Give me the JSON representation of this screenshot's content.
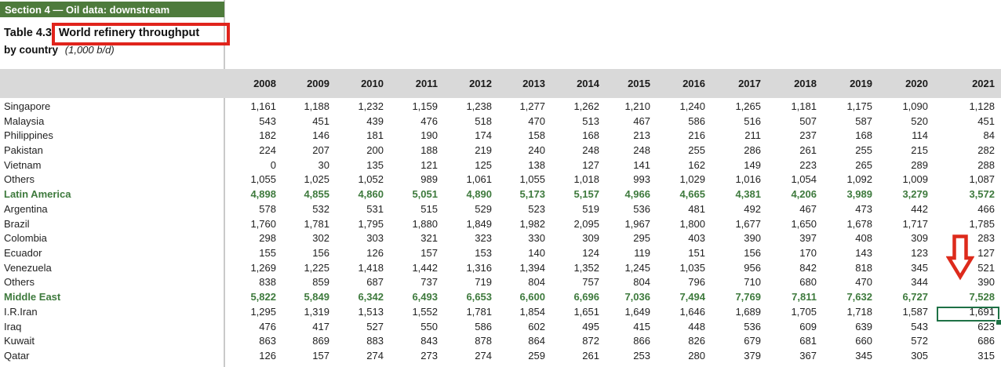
{
  "section_header": "Section 4 — Oil data: downstream",
  "table": {
    "title_prefix": "Table 4.3:",
    "title_highlight": "World refinery throughput",
    "subtitle": "by country",
    "unit": "(1,000 b/d)"
  },
  "years": [
    "2008",
    "2009",
    "2010",
    "2011",
    "2012",
    "2013",
    "2014",
    "2015",
    "2016",
    "2017",
    "2018",
    "2019",
    "2020",
    "2021"
  ],
  "rows": [
    {
      "label": "Singapore",
      "type": "country",
      "values": [
        "1,161",
        "1,188",
        "1,232",
        "1,159",
        "1,238",
        "1,277",
        "1,262",
        "1,210",
        "1,240",
        "1,265",
        "1,181",
        "1,175",
        "1,090",
        "1,128"
      ]
    },
    {
      "label": "Malaysia",
      "type": "country",
      "values": [
        "543",
        "451",
        "439",
        "476",
        "518",
        "470",
        "513",
        "467",
        "586",
        "516",
        "507",
        "587",
        "520",
        "451"
      ]
    },
    {
      "label": "Philippines",
      "type": "country",
      "values": [
        "182",
        "146",
        "181",
        "190",
        "174",
        "158",
        "168",
        "213",
        "216",
        "211",
        "237",
        "168",
        "114",
        "84"
      ]
    },
    {
      "label": "Pakistan",
      "type": "country",
      "values": [
        "224",
        "207",
        "200",
        "188",
        "219",
        "240",
        "248",
        "248",
        "255",
        "286",
        "261",
        "255",
        "215",
        "282"
      ]
    },
    {
      "label": "Vietnam",
      "type": "country",
      "values": [
        "0",
        "30",
        "135",
        "121",
        "125",
        "138",
        "127",
        "141",
        "162",
        "149",
        "223",
        "265",
        "289",
        "288"
      ]
    },
    {
      "label": "Others",
      "type": "country",
      "values": [
        "1,055",
        "1,025",
        "1,052",
        "989",
        "1,061",
        "1,055",
        "1,018",
        "993",
        "1,029",
        "1,016",
        "1,054",
        "1,092",
        "1,009",
        "1,087"
      ]
    },
    {
      "label": "Latin America",
      "type": "group",
      "values": [
        "4,898",
        "4,855",
        "4,860",
        "5,051",
        "4,890",
        "5,173",
        "5,157",
        "4,966",
        "4,665",
        "4,381",
        "4,206",
        "3,989",
        "3,279",
        "3,572"
      ]
    },
    {
      "label": "Argentina",
      "type": "country",
      "values": [
        "578",
        "532",
        "531",
        "515",
        "529",
        "523",
        "519",
        "536",
        "481",
        "492",
        "467",
        "473",
        "442",
        "466"
      ]
    },
    {
      "label": "Brazil",
      "type": "country",
      "values": [
        "1,760",
        "1,781",
        "1,795",
        "1,880",
        "1,849",
        "1,982",
        "2,095",
        "1,967",
        "1,800",
        "1,677",
        "1,650",
        "1,678",
        "1,717",
        "1,785"
      ]
    },
    {
      "label": "Colombia",
      "type": "country",
      "values": [
        "298",
        "302",
        "303",
        "321",
        "323",
        "330",
        "309",
        "295",
        "403",
        "390",
        "397",
        "408",
        "309",
        "283"
      ]
    },
    {
      "label": "Ecuador",
      "type": "country",
      "values": [
        "155",
        "156",
        "126",
        "157",
        "153",
        "140",
        "124",
        "119",
        "151",
        "156",
        "170",
        "143",
        "123",
        "127"
      ]
    },
    {
      "label": "Venezuela",
      "type": "country",
      "values": [
        "1,269",
        "1,225",
        "1,418",
        "1,442",
        "1,316",
        "1,394",
        "1,352",
        "1,245",
        "1,035",
        "956",
        "842",
        "818",
        "345",
        "521"
      ]
    },
    {
      "label": "Others",
      "type": "country",
      "values": [
        "838",
        "859",
        "687",
        "737",
        "719",
        "804",
        "757",
        "804",
        "796",
        "710",
        "680",
        "470",
        "344",
        "390"
      ]
    },
    {
      "label": "Middle East",
      "type": "group",
      "values": [
        "5,822",
        "5,849",
        "6,342",
        "6,493",
        "6,653",
        "6,600",
        "6,696",
        "7,036",
        "7,494",
        "7,769",
        "7,811",
        "7,632",
        "6,727",
        "7,528"
      ]
    },
    {
      "label": "I.R.Iran",
      "type": "country",
      "values": [
        "1,295",
        "1,319",
        "1,513",
        "1,552",
        "1,781",
        "1,854",
        "1,651",
        "1,649",
        "1,646",
        "1,689",
        "1,705",
        "1,718",
        "1,587",
        "1,691"
      ]
    },
    {
      "label": "Iraq",
      "type": "country",
      "values": [
        "476",
        "417",
        "527",
        "550",
        "586",
        "602",
        "495",
        "415",
        "448",
        "536",
        "609",
        "639",
        "543",
        "623"
      ]
    },
    {
      "label": "Kuwait",
      "type": "country",
      "values": [
        "863",
        "869",
        "883",
        "843",
        "878",
        "864",
        "872",
        "866",
        "826",
        "679",
        "681",
        "660",
        "572",
        "686"
      ]
    },
    {
      "label": "Qatar",
      "type": "country",
      "values": [
        "126",
        "157",
        "274",
        "273",
        "274",
        "259",
        "261",
        "253",
        "280",
        "379",
        "367",
        "345",
        "305",
        "315"
      ]
    }
  ],
  "annotations": {
    "red_box_target": "World refinery throughput",
    "red_arrow": {
      "column": "2021",
      "direction": "down"
    },
    "selected_cell": {
      "row": "I.R.Iran",
      "column": "2021",
      "value": "1,691"
    }
  },
  "colors": {
    "section_green": "#4e7b3c",
    "group_text_green": "#3e7a3d",
    "header_band_gray": "#d9d9d9",
    "annotation_red": "#e0241c",
    "selection_green": "#1e7145"
  }
}
